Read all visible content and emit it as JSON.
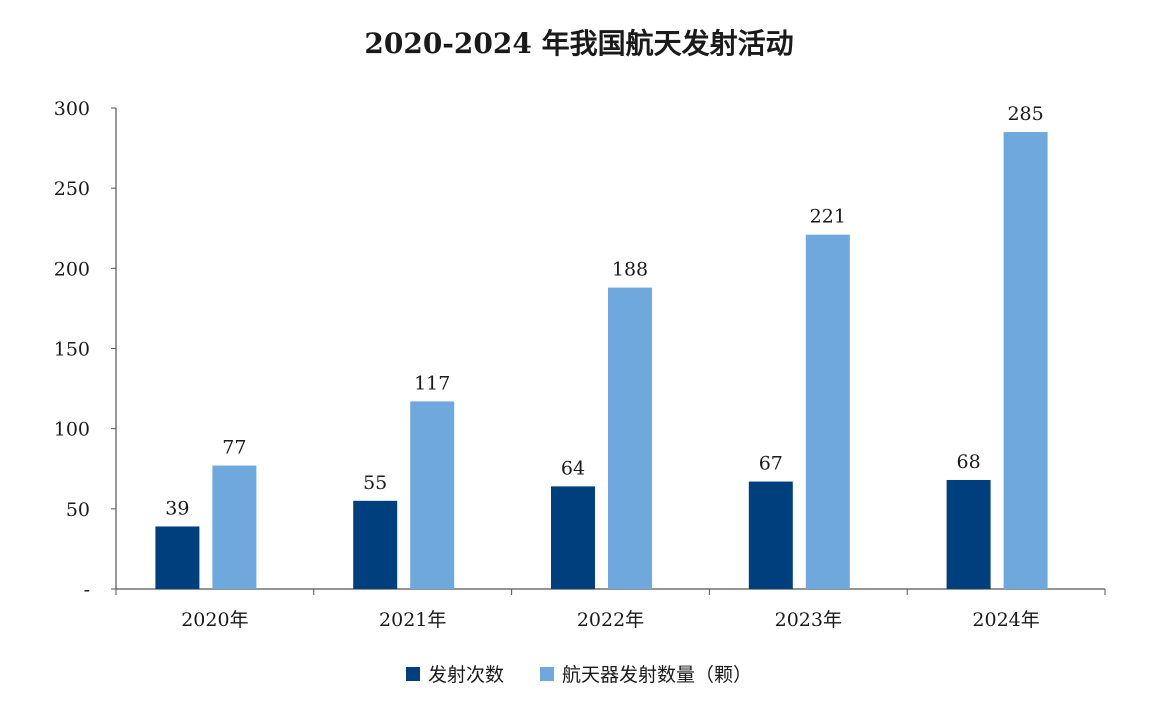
{
  "chart_data": {
    "type": "bar",
    "title": "2020-2024 年我国航天发射活动",
    "categories": [
      "2020年",
      "2021年",
      "2022年",
      "2023年",
      "2024年"
    ],
    "series": [
      {
        "name": "发射次数",
        "color": "#003f7d",
        "values": [
          39,
          55,
          64,
          67,
          68
        ]
      },
      {
        "name": "航天器发射数量（颗）",
        "color": "#6fa8dc",
        "values": [
          77,
          117,
          188,
          221,
          285
        ]
      }
    ],
    "yticks": [
      "-",
      "50",
      "100",
      "150",
      "200",
      "250",
      "300"
    ],
    "ylim": [
      0,
      300
    ],
    "xlabel": "",
    "ylabel": "",
    "legend_position": "bottom"
  }
}
